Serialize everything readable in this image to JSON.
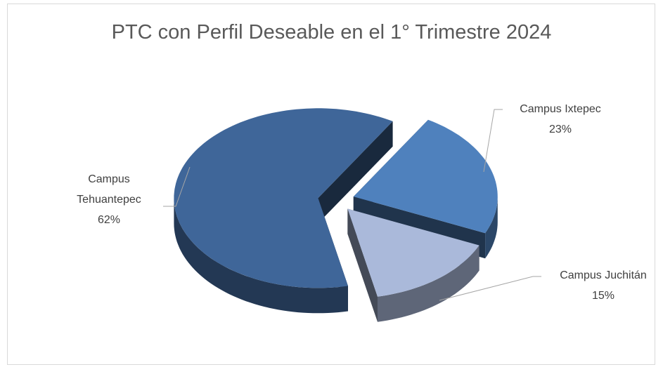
{
  "chart_data": {
    "type": "pie",
    "title": "PTC con Perfil Deseable en el 1° Trimestre 2024",
    "categories": [
      "Campus Tehuantepec",
      "Campus Ixtepec",
      "Campus Juchitán"
    ],
    "values": [
      62,
      23,
      15
    ],
    "value_labels": [
      "62%",
      "23%",
      "15%"
    ],
    "colors": [
      "#3f6699",
      "#4f81bd",
      "#aab9da"
    ]
  }
}
